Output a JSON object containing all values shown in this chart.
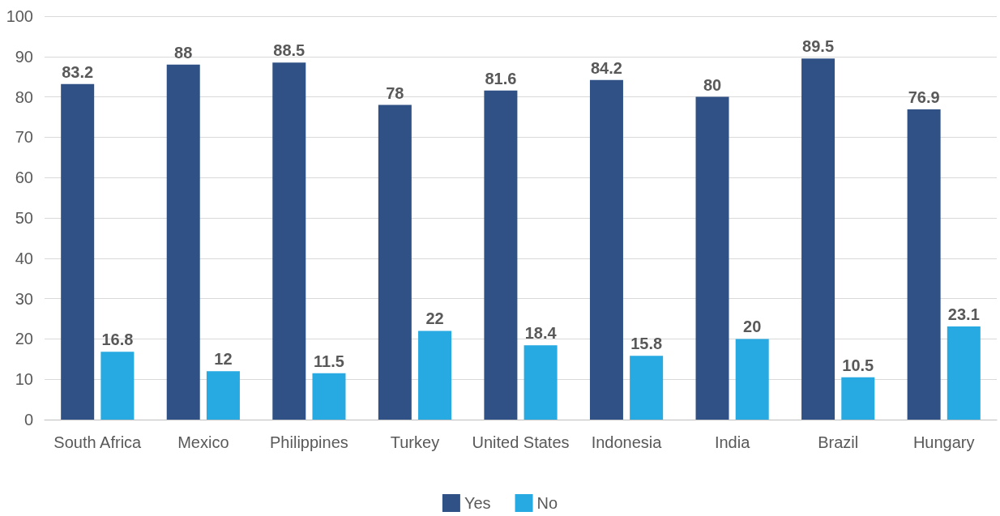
{
  "chart_data": {
    "type": "bar",
    "categories": [
      "South Africa",
      "Mexico",
      "Philippines",
      "Turkey",
      "United States",
      "Indonesia",
      "India",
      "Brazil",
      "Hungary"
    ],
    "series": [
      {
        "name": "Yes",
        "color": "#2f5186",
        "values": [
          83.2,
          88,
          88.5,
          78,
          81.6,
          84.2,
          80,
          89.5,
          76.9
        ]
      },
      {
        "name": "No",
        "color": "#27aae1",
        "values": [
          16.8,
          12,
          11.5,
          22,
          18.4,
          15.8,
          20,
          10.5,
          23.1
        ]
      }
    ],
    "ylim": [
      0,
      100
    ],
    "yticks": [
      0,
      10,
      20,
      30,
      40,
      50,
      60,
      70,
      80,
      90,
      100
    ],
    "grid": "y",
    "legend": "bottom",
    "data_labels": true
  }
}
